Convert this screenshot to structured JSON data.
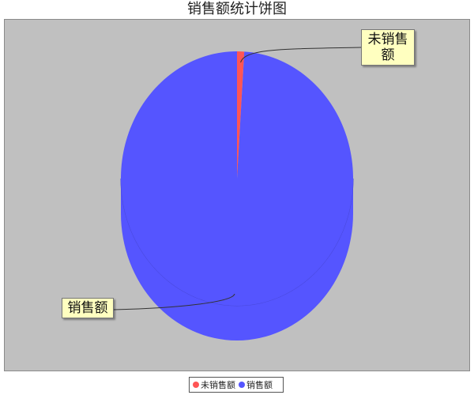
{
  "chart_data": {
    "type": "pie",
    "title": "销售额统计饼图",
    "slices": [
      {
        "label": "未销售额",
        "value": 1,
        "color": "#ff5555"
      },
      {
        "label": "销售额",
        "value": 99,
        "color": "#5555ff"
      }
    ],
    "style": "3d",
    "legend_position": "bottom"
  }
}
